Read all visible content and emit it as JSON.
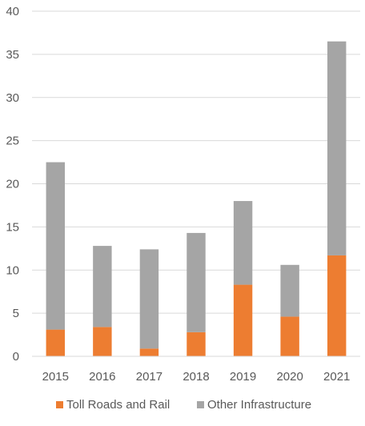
{
  "chart_data": {
    "type": "bar",
    "stacked": true,
    "categories": [
      "2015",
      "2016",
      "2017",
      "2018",
      "2019",
      "2020",
      "2021"
    ],
    "series": [
      {
        "name": "Toll Roads and Rail",
        "color": "#ed7d31",
        "values": [
          3.1,
          3.4,
          0.9,
          2.8,
          8.3,
          4.6,
          11.7
        ]
      },
      {
        "name": "Other Infrastructure",
        "color": "#a5a5a5",
        "values": [
          19.4,
          9.4,
          11.5,
          11.5,
          9.7,
          6.0,
          24.8
        ]
      }
    ],
    "ylim": [
      0,
      40
    ],
    "yticks": [
      "0",
      "5",
      "10",
      "15",
      "20",
      "25",
      "30",
      "35",
      "40"
    ],
    "grid": true,
    "legend_position": "bottom",
    "title": "",
    "xlabel": "",
    "ylabel": ""
  }
}
